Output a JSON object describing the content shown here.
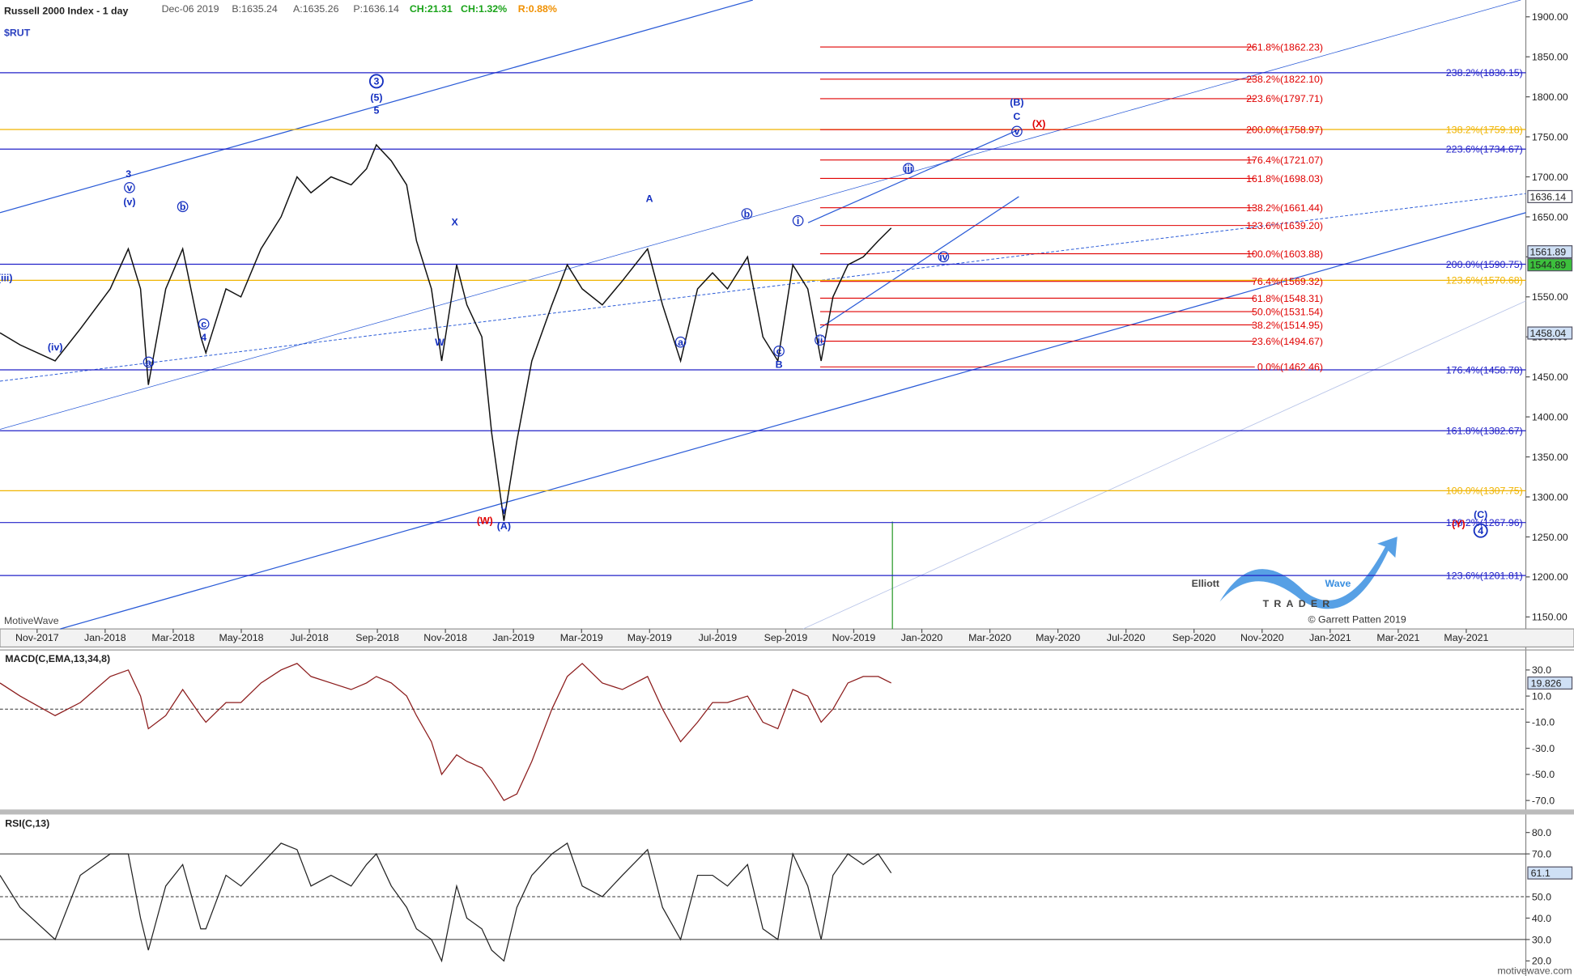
{
  "header": {
    "title": "Russell 2000 Index - 1 day",
    "symbol": "$RUT",
    "quote": "Dec-06 2019",
    "bid": "B:1635.24",
    "ask": "A:1635.26",
    "price": "P:1636.14",
    "change": "CH:21.31",
    "change_pct": "CH:1.32%",
    "range": "R:0.88%"
  },
  "chart_data": [
    {
      "type": "line",
      "x": [
        -1.09,
        -0.5,
        0.53,
        1.27,
        2.15,
        2.68,
        3.04,
        3.27,
        3.78,
        4.28,
        4.81,
        4.96,
        5.55,
        5.99,
        6.58,
        7.17,
        7.64,
        8.05,
        8.64,
        9.23,
        9.68,
        9.97,
        10.41,
        10.86,
        11.15,
        11.59,
        11.89,
        12.33,
        12.63,
        13.07,
        13.36,
        13.72,
        14.1,
        14.54,
        15.13,
        15.58,
        16.02,
        16.61,
        17.2,
        17.94,
        18.38,
        18.91,
        19.41,
        19.85,
        20.29,
        20.88,
        21.33,
        21.77,
        22.21,
        22.65,
        23.04,
        23.39,
        23.83,
        24.28,
        24.72,
        25.1
      ],
      "series": [
        {
          "color": "#111111",
          "values": [
            1505,
            1490,
            1470,
            1510,
            1560,
            1610,
            1560,
            1440,
            1560,
            1610,
            1500,
            1480,
            1560,
            1550,
            1610,
            1650,
            1700,
            1680,
            1700,
            1690,
            1710,
            1740,
            1720,
            1690,
            1620,
            1560,
            1470,
            1590,
            1540,
            1500,
            1380,
            1270,
            1370,
            1470,
            1540,
            1590,
            1560,
            1540,
            1570,
            1610,
            1540,
            1470,
            1560,
            1580,
            1560,
            1600,
            1500,
            1470,
            1590,
            1560,
            1470,
            1550,
            1590,
            1600,
            1620,
            1636
          ]
        }
      ],
      "xlim": [
        -1.09,
        43.75
      ],
      "ylim": [
        1135,
        1921
      ],
      "xticks": [
        {
          "value": 0,
          "label": "Nov-2017"
        },
        {
          "value": 2,
          "label": "Jan-2018"
        },
        {
          "value": 4,
          "label": "Mar-2018"
        },
        {
          "value": 6,
          "label": "May-2018"
        },
        {
          "value": 8,
          "label": "Jul-2018"
        },
        {
          "value": 10,
          "label": "Sep-2018"
        },
        {
          "value": 12,
          "label": "Nov-2018"
        },
        {
          "value": 14,
          "label": "Jan-2019"
        },
        {
          "value": 16,
          "label": "Mar-2019"
        },
        {
          "value": 18,
          "label": "May-2019"
        },
        {
          "value": 20,
          "label": "Jul-2019"
        },
        {
          "value": 22,
          "label": "Sep-2019"
        },
        {
          "value": 24,
          "label": "Nov-2019"
        },
        {
          "value": 26,
          "label": "Jan-2020"
        },
        {
          "value": 28,
          "label": "Mar-2020"
        },
        {
          "value": 30,
          "label": "May-2020"
        },
        {
          "value": 32,
          "label": "Jul-2020"
        },
        {
          "value": 34,
          "label": "Sep-2020"
        },
        {
          "value": 36,
          "label": "Nov-2020"
        },
        {
          "value": 38,
          "label": "Jan-2021"
        },
        {
          "value": 40,
          "label": "Mar-2021"
        },
        {
          "value": 42,
          "label": "May-2021"
        }
      ],
      "yticks": [
        {
          "value": 1150,
          "label": "1150.00"
        },
        {
          "value": 1200,
          "label": "1200.00"
        },
        {
          "value": 1250,
          "label": "1250.00"
        },
        {
          "value": 1300,
          "label": "1300.00"
        },
        {
          "value": 1350,
          "label": "1350.00"
        },
        {
          "value": 1400,
          "label": "1400.00"
        },
        {
          "value": 1450,
          "label": "1450.00"
        },
        {
          "value": 1500,
          "label": "1500.00"
        },
        {
          "value": 1550,
          "label": "1550.00"
        },
        {
          "value": 1600,
          "label": "1600.00"
        },
        {
          "value": 1650,
          "label": "1650.00"
        },
        {
          "value": 1700,
          "label": "1700.00"
        },
        {
          "value": 1750,
          "label": "1750.00"
        },
        {
          "value": 1800,
          "label": "1800.00"
        },
        {
          "value": 1850,
          "label": "1850.00"
        },
        {
          "value": 1900,
          "label": "1900.00"
        }
      ],
      "levels": [
        {
          "value": 1830.15,
          "label": "238.2%(1830.15)",
          "color": "#2020c8"
        },
        {
          "value": 1759.18,
          "label": "138.2%(1759.18)",
          "color": "#f0b400"
        },
        {
          "value": 1734.67,
          "label": "223.6%(1734.67)",
          "color": "#2020c8"
        },
        {
          "value": 1590.75,
          "label": "200.0%(1590.75)",
          "color": "#2020c8"
        },
        {
          "value": 1570.68,
          "label": "123.6%(1570.68)",
          "color": "#f0b400"
        },
        {
          "value": 1458.78,
          "label": "176.4%(1458.78)",
          "color": "#2020c8"
        },
        {
          "value": 1382.67,
          "label": "161.8%(1382.67)",
          "color": "#2020c8"
        },
        {
          "value": 1307.75,
          "label": "100.0%(1307.75)",
          "color": "#f0b400"
        },
        {
          "value": 1267.96,
          "label": "138.2%(1267.96)",
          "color": "#2020c8"
        },
        {
          "value": 1201.81,
          "label": "123.6%(1201.81)",
          "color": "#2020c8"
        }
      ],
      "fib_levels": [
        {
          "value": 1862.23,
          "label": "261.8%(1862.23)"
        },
        {
          "value": 1822.1,
          "label": "238.2%(1822.10)"
        },
        {
          "value": 1797.71,
          "label": "223.6%(1797.71)"
        },
        {
          "value": 1758.97,
          "label": "200.0%(1758.97)"
        },
        {
          "value": 1721.07,
          "label": "176.4%(1721.07)"
        },
        {
          "value": 1698.03,
          "label": "161.8%(1698.03)"
        },
        {
          "value": 1661.44,
          "label": "138.2%(1661.44)"
        },
        {
          "value": 1639.2,
          "label": "123.6%(1639.20)"
        },
        {
          "value": 1603.88,
          "label": "100.0%(1603.88)"
        },
        {
          "value": 1569.32,
          "label": "76.4%(1569.32)"
        },
        {
          "value": 1548.31,
          "label": "61.8%(1548.31)"
        },
        {
          "value": 1531.54,
          "label": "50.0%(1531.54)"
        },
        {
          "value": 1514.95,
          "label": "38.2%(1514.95)"
        },
        {
          "value": 1494.67,
          "label": "23.6%(1494.67)"
        },
        {
          "value": 1462.46,
          "label": "0.0%(1462.46)"
        }
      ],
      "fib_color": "#e00000"
    },
    {
      "type": "line",
      "title": "MACD(C,EMA,13,34,8)",
      "x": [
        -1.09,
        -0.5,
        0.53,
        1.27,
        2.15,
        2.68,
        3.04,
        3.27,
        3.78,
        4.28,
        4.81,
        4.96,
        5.55,
        5.99,
        6.58,
        7.17,
        7.64,
        8.05,
        8.64,
        9.23,
        9.68,
        9.97,
        10.41,
        10.86,
        11.15,
        11.59,
        11.89,
        12.33,
        12.63,
        13.07,
        13.36,
        13.72,
        14.1,
        14.54,
        15.13,
        15.58,
        16.02,
        16.61,
        17.2,
        17.94,
        18.38,
        18.91,
        19.41,
        19.85,
        20.29,
        20.88,
        21.33,
        21.77,
        22.21,
        22.65,
        23.04,
        23.39,
        23.83,
        24.28,
        24.72,
        25.1
      ],
      "series": [
        {
          "color": "#8b1a1a",
          "values": [
            20,
            10,
            -5,
            5,
            25,
            30,
            10,
            -15,
            -5,
            15,
            -5,
            -10,
            5,
            5,
            20,
            30,
            35,
            25,
            20,
            15,
            20,
            25,
            20,
            10,
            -5,
            -25,
            -50,
            -35,
            -40,
            -45,
            -55,
            -70,
            -65,
            -40,
            0,
            25,
            35,
            20,
            15,
            25,
            0,
            -25,
            -10,
            5,
            5,
            10,
            -10,
            -15,
            15,
            10,
            -10,
            0,
            20,
            25,
            25,
            20
          ]
        }
      ],
      "xlim": [
        -1.09,
        43.75
      ],
      "ylim": [
        -76.9,
        45.3
      ],
      "yticks": [
        {
          "value": 30,
          "label": "30.0"
        },
        {
          "value": 10,
          "label": "10.0"
        },
        {
          "value": -10,
          "label": "-10.0"
        },
        {
          "value": -30,
          "label": "-30.0"
        },
        {
          "value": -50,
          "label": "-50.0"
        },
        {
          "value": -70,
          "label": "-70.0"
        }
      ],
      "last_value": 19.826
    },
    {
      "type": "line",
      "title": "RSI(C,13)",
      "x": [
        -1.09,
        -0.5,
        0.53,
        1.27,
        2.15,
        2.68,
        3.04,
        3.27,
        3.78,
        4.28,
        4.81,
        4.96,
        5.55,
        5.99,
        6.58,
        7.17,
        7.64,
        8.05,
        8.64,
        9.23,
        9.68,
        9.97,
        10.41,
        10.86,
        11.15,
        11.59,
        11.89,
        12.33,
        12.63,
        13.07,
        13.36,
        13.72,
        14.1,
        14.54,
        15.13,
        15.58,
        16.02,
        16.61,
        17.2,
        17.94,
        18.38,
        18.91,
        19.41,
        19.85,
        20.29,
        20.88,
        21.33,
        21.77,
        22.21,
        22.65,
        23.04,
        23.39,
        23.83,
        24.28,
        24.72,
        25.1
      ],
      "series": [
        {
          "color": "#222222",
          "values": [
            60,
            45,
            30,
            60,
            70,
            70,
            40,
            25,
            55,
            65,
            35,
            35,
            60,
            55,
            65,
            75,
            72,
            55,
            60,
            55,
            65,
            70,
            55,
            45,
            35,
            30,
            20,
            55,
            40,
            35,
            25,
            20,
            45,
            60,
            70,
            75,
            55,
            50,
            60,
            72,
            45,
            30,
            60,
            60,
            55,
            65,
            35,
            30,
            70,
            55,
            30,
            60,
            70,
            65,
            70,
            61.1
          ]
        }
      ],
      "xlim": [
        -1.09,
        43.75
      ],
      "ylim": [
        15.3,
        88.4
      ],
      "yticks": [
        {
          "value": 80,
          "label": "80.0"
        },
        {
          "value": 70,
          "label": "70.0"
        },
        {
          "value": 50,
          "label": "50.0"
        },
        {
          "value": 40,
          "label": "40.0"
        },
        {
          "value": 30,
          "label": "30.0"
        },
        {
          "value": 20,
          "label": "20.0"
        }
      ],
      "ref_lines": [
        70,
        50,
        30
      ],
      "last_value": 61.1
    }
  ],
  "waves": [
    "3",
    "(5)",
    "5",
    "3",
    "v",
    "(v)",
    "b",
    "a",
    "c",
    "4",
    "(iv)",
    "(iii)",
    "X",
    "W",
    "Y",
    "(W)",
    "(A)",
    "A",
    "b",
    "a",
    "c",
    "B",
    "i",
    "ii",
    "iii",
    "iv",
    "v",
    "(B)",
    "C",
    "(X)",
    "(Y)",
    "(C)",
    "4"
  ],
  "price_tags": [
    "1636.14",
    "1561.89",
    "1544.89",
    "1458.04"
  ],
  "watermark": "MotiveWave",
  "logo": {
    "word1": "Elliott",
    "word2": "Wave",
    "word3": "TRADER"
  },
  "copyright": "© Garrett Patten 2019",
  "site": "motivewave.com"
}
